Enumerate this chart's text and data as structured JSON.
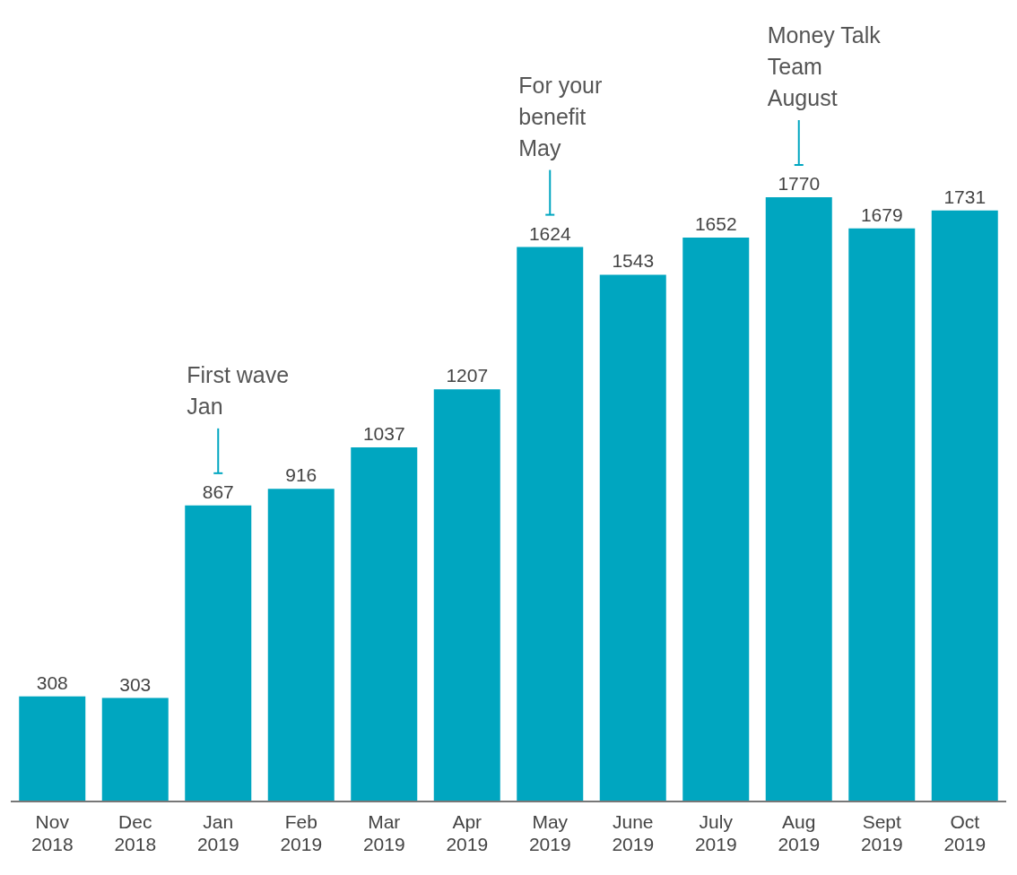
{
  "chart_data": {
    "type": "bar",
    "categories": [
      "Nov 2018",
      "Dec 2018",
      "Jan 2019",
      "Feb 2019",
      "Mar 2019",
      "Apr 2019",
      "May 2019",
      "June 2019",
      "July 2019",
      "Aug 2019",
      "Sept 2019",
      "Oct 2019"
    ],
    "values": [
      308,
      303,
      867,
      916,
      1037,
      1207,
      1624,
      1543,
      1652,
      1770,
      1679,
      1731
    ],
    "color": "#00a6c0",
    "data_labels": true,
    "grid": false,
    "legend": false,
    "annotations": [
      "First wave Jan",
      "For your benefit May",
      "Money Talk Team August"
    ]
  }
}
